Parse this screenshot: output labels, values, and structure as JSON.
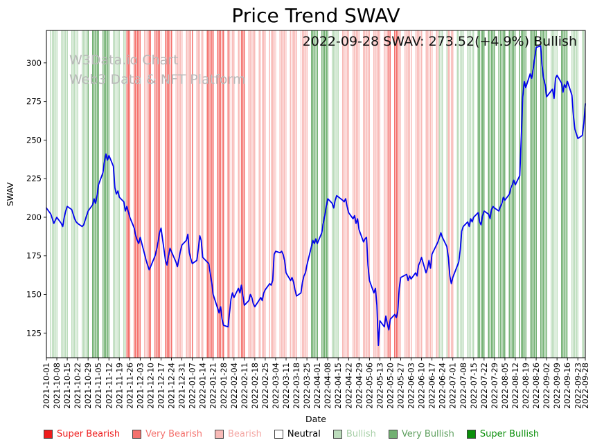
{
  "chart_data": {
    "type": "line",
    "title": "Price Trend SWAV",
    "xlabel": "Date",
    "ylabel": "SWAV",
    "annotation": "2022-09-28 SWAV: 273.52(+4.9%) Bullish",
    "watermark": {
      "line1": "W3Data.io Chart",
      "line2": "Web3 Data & NFT Platform"
    },
    "latest": {
      "date": "2022-09-28",
      "value": 273.52,
      "change_pct": "+4.9%",
      "sentiment": "Bullish"
    },
    "ylim": [
      109,
      321
    ],
    "yticks": [
      125,
      150,
      175,
      200,
      225,
      250,
      275,
      300
    ],
    "x_start": "2021-10-01",
    "x_end": "2022-09-28",
    "x_tick_labels": [
      "2021-10-01",
      "2021-10-08",
      "2021-10-15",
      "2021-10-22",
      "2021-10-29",
      "2021-11-05",
      "2021-11-12",
      "2021-11-19",
      "2021-11-26",
      "2021-12-03",
      "2021-12-10",
      "2021-12-17",
      "2021-12-24",
      "2021-12-31",
      "2022-01-07",
      "2022-01-14",
      "2022-01-21",
      "2022-01-28",
      "2022-02-04",
      "2022-02-11",
      "2022-02-18",
      "2022-02-25",
      "2022-03-04",
      "2022-03-11",
      "2022-03-18",
      "2022-03-25",
      "2022-04-01",
      "2022-04-08",
      "2022-04-15",
      "2022-04-22",
      "2022-04-29",
      "2022-05-06",
      "2022-05-13",
      "2022-05-20",
      "2022-05-27",
      "2022-06-03",
      "2022-06-10",
      "2022-06-17",
      "2022-06-24",
      "2022-07-01",
      "2022-07-08",
      "2022-07-15",
      "2022-07-22",
      "2022-07-29",
      "2022-08-05",
      "2022-08-12",
      "2022-08-19",
      "2022-08-26",
      "2022-09-02",
      "2022-09-09",
      "2022-09-16",
      "2022-09-23",
      "2022-09-28"
    ],
    "series": [
      {
        "name": "SWAV",
        "color": "#0000ee",
        "dates": [
          "2021-10-01",
          "2021-10-04",
          "2021-10-05",
          "2021-10-06",
          "2021-10-07",
          "2021-10-08",
          "2021-10-11",
          "2021-10-12",
          "2021-10-13",
          "2021-10-14",
          "2021-10-15",
          "2021-10-18",
          "2021-10-19",
          "2021-10-20",
          "2021-10-21",
          "2021-10-22",
          "2021-10-25",
          "2021-10-26",
          "2021-10-27",
          "2021-10-28",
          "2021-10-29",
          "2021-11-01",
          "2021-11-02",
          "2021-11-03",
          "2021-11-04",
          "2021-11-05",
          "2021-11-08",
          "2021-11-09",
          "2021-11-10",
          "2021-11-11",
          "2021-11-12",
          "2021-11-15",
          "2021-11-16",
          "2021-11-17",
          "2021-11-18",
          "2021-11-19",
          "2021-11-22",
          "2021-11-23",
          "2021-11-24",
          "2021-11-26",
          "2021-11-29",
          "2021-11-30",
          "2021-12-01",
          "2021-12-02",
          "2021-12-03",
          "2021-12-06",
          "2021-12-07",
          "2021-12-08",
          "2021-12-09",
          "2021-12-10",
          "2021-12-13",
          "2021-12-14",
          "2021-12-15",
          "2021-12-16",
          "2021-12-17",
          "2021-12-20",
          "2021-12-21",
          "2021-12-22",
          "2021-12-23",
          "2021-12-27",
          "2021-12-28",
          "2021-12-29",
          "2021-12-30",
          "2021-12-31",
          "2022-01-03",
          "2022-01-04",
          "2022-01-05",
          "2022-01-06",
          "2022-01-07",
          "2022-01-10",
          "2022-01-11",
          "2022-01-12",
          "2022-01-13",
          "2022-01-14",
          "2022-01-18",
          "2022-01-19",
          "2022-01-20",
          "2022-01-21",
          "2022-01-24",
          "2022-01-25",
          "2022-01-26",
          "2022-01-27",
          "2022-01-28",
          "2022-01-31",
          "2022-02-01",
          "2022-02-02",
          "2022-02-03",
          "2022-02-04",
          "2022-02-07",
          "2022-02-08",
          "2022-02-09",
          "2022-02-10",
          "2022-02-11",
          "2022-02-14",
          "2022-02-15",
          "2022-02-16",
          "2022-02-17",
          "2022-02-18",
          "2022-02-22",
          "2022-02-23",
          "2022-02-24",
          "2022-02-25",
          "2022-02-28",
          "2022-03-01",
          "2022-03-02",
          "2022-03-03",
          "2022-03-04",
          "2022-03-07",
          "2022-03-08",
          "2022-03-09",
          "2022-03-10",
          "2022-03-11",
          "2022-03-14",
          "2022-03-15",
          "2022-03-16",
          "2022-03-17",
          "2022-03-18",
          "2022-03-21",
          "2022-03-22",
          "2022-03-23",
          "2022-03-24",
          "2022-03-25",
          "2022-03-28",
          "2022-03-29",
          "2022-03-30",
          "2022-03-31",
          "2022-04-01",
          "2022-04-04",
          "2022-04-05",
          "2022-04-06",
          "2022-04-07",
          "2022-04-08",
          "2022-04-11",
          "2022-04-12",
          "2022-04-13",
          "2022-04-14",
          "2022-04-18",
          "2022-04-19",
          "2022-04-20",
          "2022-04-21",
          "2022-04-22",
          "2022-04-25",
          "2022-04-26",
          "2022-04-27",
          "2022-04-28",
          "2022-04-29",
          "2022-05-02",
          "2022-05-03",
          "2022-05-04",
          "2022-05-05",
          "2022-05-06",
          "2022-05-09",
          "2022-05-10",
          "2022-05-11",
          "2022-05-12",
          "2022-05-13",
          "2022-05-16",
          "2022-05-17",
          "2022-05-18",
          "2022-05-19",
          "2022-05-20",
          "2022-05-23",
          "2022-05-24",
          "2022-05-25",
          "2022-05-26",
          "2022-05-27",
          "2022-05-31",
          "2022-06-01",
          "2022-06-02",
          "2022-06-03",
          "2022-06-06",
          "2022-06-07",
          "2022-06-08",
          "2022-06-09",
          "2022-06-10",
          "2022-06-13",
          "2022-06-14",
          "2022-06-15",
          "2022-06-16",
          "2022-06-17",
          "2022-06-21",
          "2022-06-22",
          "2022-06-23",
          "2022-06-24",
          "2022-06-27",
          "2022-06-28",
          "2022-06-29",
          "2022-06-30",
          "2022-07-01",
          "2022-07-05",
          "2022-07-06",
          "2022-07-07",
          "2022-07-08",
          "2022-07-11",
          "2022-07-12",
          "2022-07-13",
          "2022-07-14",
          "2022-07-15",
          "2022-07-18",
          "2022-07-19",
          "2022-07-20",
          "2022-07-21",
          "2022-07-22",
          "2022-07-25",
          "2022-07-26",
          "2022-07-27",
          "2022-07-28",
          "2022-07-29",
          "2022-08-01",
          "2022-08-02",
          "2022-08-03",
          "2022-08-04",
          "2022-08-05",
          "2022-08-08",
          "2022-08-09",
          "2022-08-10",
          "2022-08-11",
          "2022-08-12",
          "2022-08-15",
          "2022-08-16",
          "2022-08-17",
          "2022-08-18",
          "2022-08-19",
          "2022-08-22",
          "2022-08-23",
          "2022-08-24",
          "2022-08-25",
          "2022-08-26",
          "2022-08-29",
          "2022-08-30",
          "2022-08-31",
          "2022-09-01",
          "2022-09-02",
          "2022-09-06",
          "2022-09-07",
          "2022-09-08",
          "2022-09-09",
          "2022-09-12",
          "2022-09-13",
          "2022-09-14",
          "2022-09-15",
          "2022-09-16",
          "2022-09-19",
          "2022-09-20",
          "2022-09-21",
          "2022-09-22",
          "2022-09-23",
          "2022-09-26",
          "2022-09-27",
          "2022-09-28"
        ],
        "values": [
          206,
          202,
          199,
          196,
          198,
          200,
          196,
          194,
          200,
          204,
          207,
          205,
          202,
          199,
          197,
          196,
          194,
          195,
          198,
          201,
          204,
          208,
          212,
          209,
          214,
          221,
          229,
          236,
          241,
          237,
          240,
          233,
          219,
          215,
          217,
          213,
          210,
          204,
          207,
          200,
          193,
          188,
          185,
          183,
          187,
          176,
          172,
          169,
          166,
          168,
          175,
          179,
          184,
          190,
          193,
          172,
          169,
          175,
          180,
          171,
          168,
          173,
          178,
          182,
          185,
          189,
          177,
          173,
          170,
          172,
          179,
          188,
          185,
          174,
          170,
          164,
          158,
          150,
          141,
          138,
          142,
          134,
          130,
          129,
          138,
          147,
          151,
          148,
          154,
          151,
          156,
          149,
          143,
          146,
          150,
          148,
          144,
          142,
          148,
          146,
          151,
          153,
          157,
          156,
          159,
          176,
          178,
          177,
          178,
          176,
          172,
          164,
          159,
          161,
          158,
          153,
          149,
          151,
          158,
          162,
          164,
          169,
          181,
          185,
          183,
          186,
          183,
          190,
          196,
          201,
          207,
          212,
          209,
          206,
          211,
          214,
          211,
          210,
          212,
          207,
          203,
          199,
          201,
          196,
          199,
          192,
          184,
          186,
          187,
          169,
          159,
          151,
          154,
          143,
          117,
          133,
          129,
          136,
          131,
          127,
          134,
          137,
          135,
          139,
          154,
          161,
          163,
          159,
          162,
          160,
          164,
          162,
          169,
          171,
          174,
          164,
          167,
          172,
          167,
          176,
          184,
          187,
          190,
          187,
          181,
          174,
          162,
          157,
          161,
          171,
          179,
          191,
          194,
          197,
          194,
          199,
          197,
          200,
          203,
          197,
          195,
          201,
          204,
          202,
          199,
          205,
          207,
          206,
          204,
          207,
          209,
          213,
          211,
          215,
          219,
          221,
          224,
          221,
          227,
          252,
          278,
          288,
          284,
          293,
          290,
          296,
          303,
          310,
          311,
          298,
          290,
          286,
          278,
          283,
          277,
          290,
          292,
          287,
          281,
          286,
          284,
          288,
          279,
          266,
          257,
          254,
          251,
          253,
          261,
          273.52
        ]
      }
    ],
    "sentiment_bands": [
      {
        "start": "2021-10-01",
        "end": "2021-10-28",
        "sentiment": "Bullish"
      },
      {
        "start": "2021-10-29",
        "end": "2021-11-12",
        "sentiment": "Very Bullish"
      },
      {
        "start": "2021-11-13",
        "end": "2021-11-23",
        "sentiment": "Bullish"
      },
      {
        "start": "2021-11-24",
        "end": "2021-12-03",
        "sentiment": "Very Bearish"
      },
      {
        "start": "2021-12-04",
        "end": "2021-12-08",
        "sentiment": "Bearish"
      },
      {
        "start": "2021-12-09",
        "end": "2021-12-16",
        "sentiment": "Very Bearish"
      },
      {
        "start": "2021-12-17",
        "end": "2021-12-18",
        "sentiment": "Bearish"
      },
      {
        "start": "2021-12-19",
        "end": "2021-12-24",
        "sentiment": "Very Bearish"
      },
      {
        "start": "2021-12-25",
        "end": "2022-01-05",
        "sentiment": "Bearish"
      },
      {
        "start": "2022-01-06",
        "end": "2022-01-08",
        "sentiment": "Very Bearish"
      },
      {
        "start": "2022-01-09",
        "end": "2022-01-14",
        "sentiment": "Bearish"
      },
      {
        "start": "2022-01-15",
        "end": "2022-01-31",
        "sentiment": "Very Bearish"
      },
      {
        "start": "2022-02-01",
        "end": "2022-02-08",
        "sentiment": "Bearish"
      },
      {
        "start": "2022-02-09",
        "end": "2022-02-12",
        "sentiment": "Very Bearish"
      },
      {
        "start": "2022-02-13",
        "end": "2022-03-25",
        "sentiment": "Bearish"
      },
      {
        "start": "2022-03-26",
        "end": "2022-04-08",
        "sentiment": "Very Bullish"
      },
      {
        "start": "2022-04-09",
        "end": "2022-04-15",
        "sentiment": "Bullish"
      },
      {
        "start": "2022-04-16",
        "end": "2022-05-18",
        "sentiment": "Bearish"
      },
      {
        "start": "2022-05-19",
        "end": "2022-05-25",
        "sentiment": "Very Bearish"
      },
      {
        "start": "2022-05-26",
        "end": "2022-06-21",
        "sentiment": "Bearish"
      },
      {
        "start": "2022-06-22",
        "end": "2022-06-27",
        "sentiment": "Bullish"
      },
      {
        "start": "2022-06-28",
        "end": "2022-07-01",
        "sentiment": "Bearish"
      },
      {
        "start": "2022-07-02",
        "end": "2022-07-15",
        "sentiment": "Bullish"
      },
      {
        "start": "2022-07-16",
        "end": "2022-09-02",
        "sentiment": "Very Bullish"
      },
      {
        "start": "2022-09-03",
        "end": "2022-09-09",
        "sentiment": "Bullish"
      },
      {
        "start": "2022-09-10",
        "end": "2022-09-15",
        "sentiment": "Very Bullish"
      },
      {
        "start": "2022-09-16",
        "end": "2022-09-28",
        "sentiment": "Bullish"
      }
    ],
    "sentiment_colors": {
      "Super Bearish": "#ee1c1c",
      "Very Bearish": "#f4716d",
      "Bearish": "#f8bab7",
      "Neutral": "#ffffff",
      "Bullish": "#bcdcbc",
      "Very Bullish": "#72b072",
      "Super Bullish": "#0a8f0a"
    },
    "legend": [
      {
        "label": "Super Bearish",
        "color": "#ee1c1c",
        "text_color": "#ee1c1c"
      },
      {
        "label": "Very Bearish",
        "color": "#f4716d",
        "text_color": "#f4716d"
      },
      {
        "label": "Bearish",
        "color": "#f8bab7",
        "text_color": "#f4a7a4"
      },
      {
        "label": "Neutral",
        "color": "#ffffff",
        "text_color": "#000000"
      },
      {
        "label": "Bullish",
        "color": "#bcdcbc",
        "text_color": "#a7cfa7"
      },
      {
        "label": "Very Bullish",
        "color": "#72b072",
        "text_color": "#5d9f5d"
      },
      {
        "label": "Super Bullish",
        "color": "#0a8f0a",
        "text_color": "#0a8f0a"
      }
    ],
    "legend_position": "bottom",
    "grid": false
  }
}
